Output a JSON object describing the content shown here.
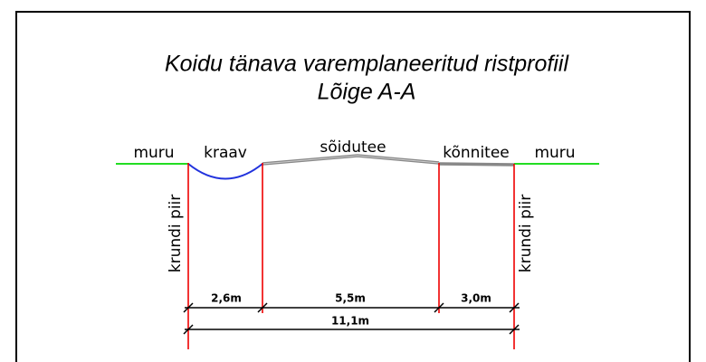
{
  "title": [
    "Koidu tänava varemplaneeritud ristprofiil",
    "Lõige A-A"
  ],
  "labels": {
    "left_ground": "muru",
    "ditch": "kraav",
    "road": "sõidutee",
    "sidewalk": "kõnnitee",
    "right_ground": "muru"
  },
  "boundaries": [
    "krundi piir",
    "krundi piir"
  ],
  "dimensions": [
    "2,6m",
    "5,5m",
    "3,0m",
    "11,1m"
  ]
}
